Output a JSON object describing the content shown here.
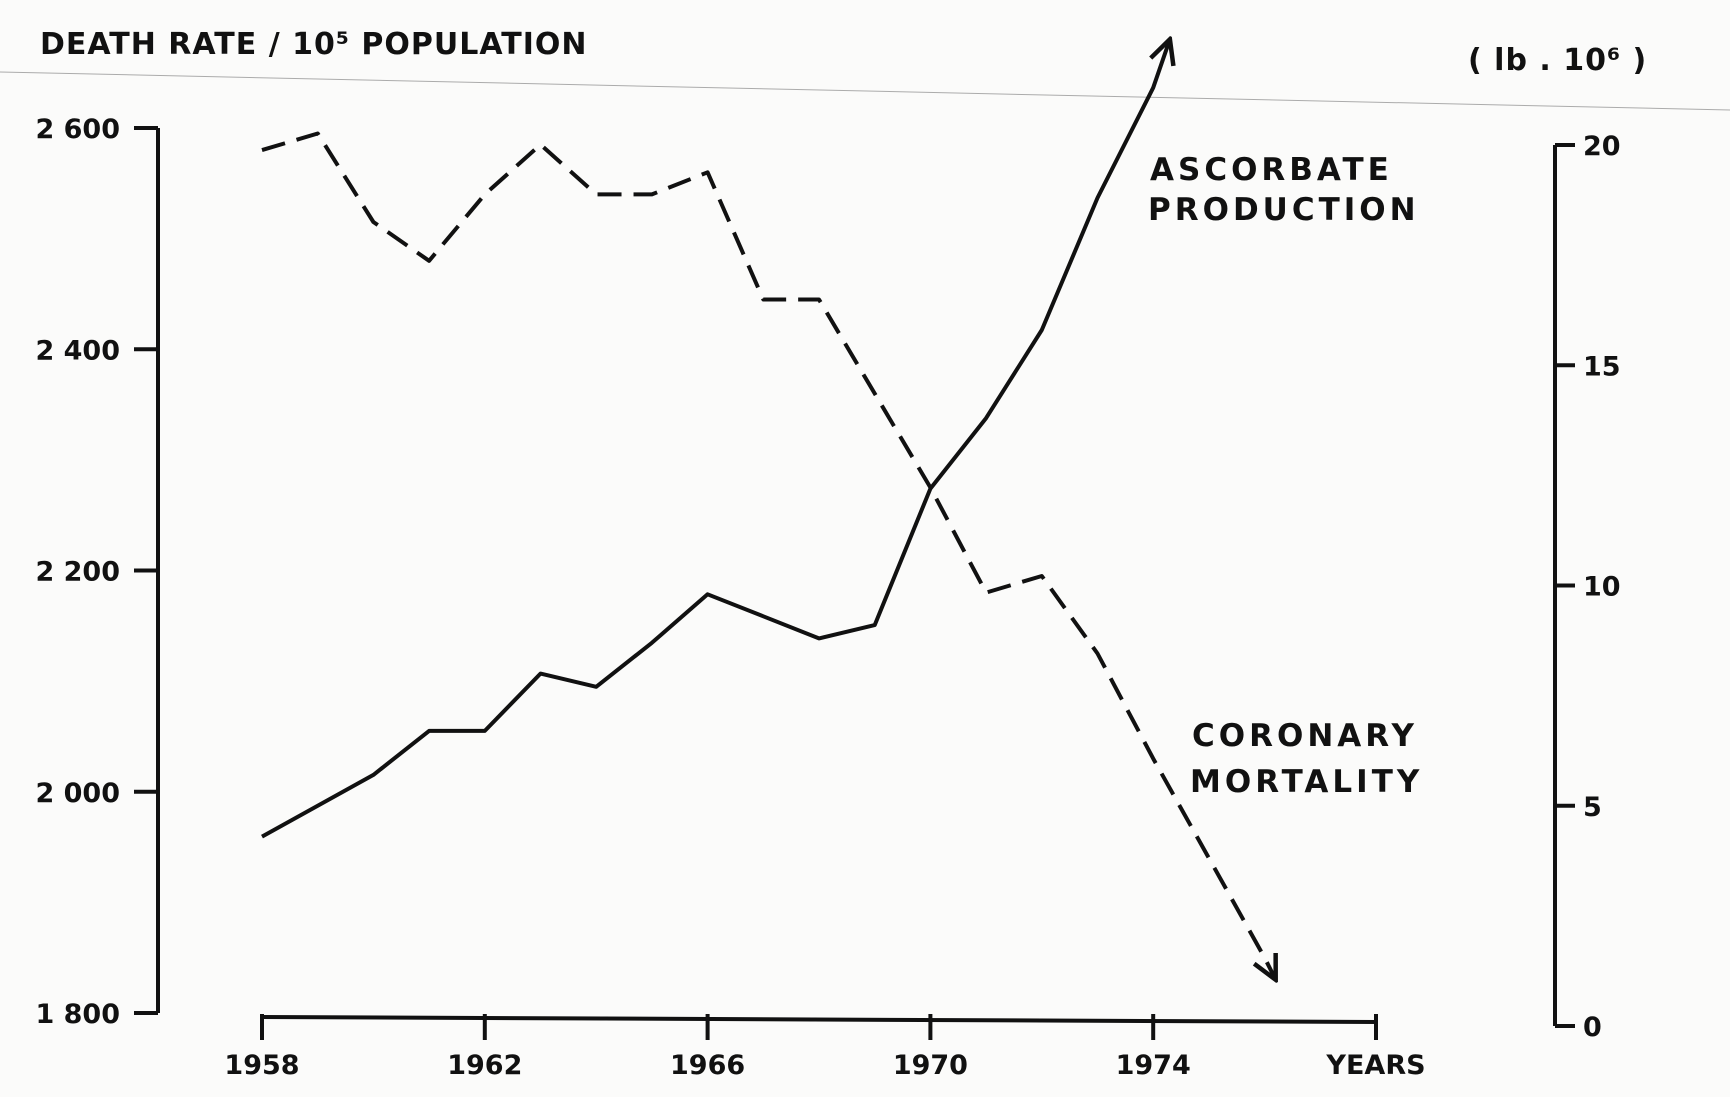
{
  "chart_data": {
    "type": "line",
    "title": "",
    "ylabel_left": "DEATH RATE / 10⁵ POPULATION",
    "ylabel_right": "( lb . 10⁶ )",
    "xlabel": "YEARS",
    "xlim": [
      1958,
      1978
    ],
    "x_ticks": [
      1958,
      1962,
      1966,
      1970,
      1974,
      1978
    ],
    "x_tick_labels": [
      "1958",
      "1962",
      "1966",
      "1970",
      "1974",
      "YEARS"
    ],
    "ylim_left": [
      1800,
      2600
    ],
    "y_left_ticks": [
      1800,
      2000,
      2200,
      2400,
      2600
    ],
    "y_left_tick_labels": [
      "1 800",
      "2 000",
      "2 200",
      "2 400",
      "2 600"
    ],
    "ylim_right": [
      0,
      20
    ],
    "y_right_ticks": [
      0,
      5,
      10,
      15,
      20
    ],
    "y_right_tick_labels": [
      "0",
      "5",
      "10",
      "15",
      "20"
    ],
    "grid": false,
    "legend": "none (series labelled directly on the chart)",
    "series": [
      {
        "name": "ASCORBATE PRODUCTION",
        "label_lines": [
          "ASCORBATE",
          "PRODUCTION"
        ],
        "axis": "right",
        "style": "solid",
        "arrow": true,
        "color": "#111111",
        "x": [
          1958,
          1959,
          1960,
          1961,
          1962,
          1963,
          1964,
          1965,
          1966,
          1967,
          1968,
          1969,
          1970,
          1971,
          1972,
          1973,
          1974,
          1974.3
        ],
        "values": [
          4.3,
          5.0,
          5.7,
          6.7,
          6.7,
          8.0,
          7.7,
          8.7,
          9.8,
          9.3,
          8.8,
          9.1,
          12.2,
          13.8,
          15.8,
          18.8,
          21.3,
          22.4
        ]
      },
      {
        "name": "CORONARY MORTALITY",
        "label_lines": [
          "CORONARY",
          "MORTALITY"
        ],
        "axis": "left",
        "style": "dashed",
        "arrow": true,
        "color": "#111111",
        "x": [
          1958,
          1959,
          1960,
          1961,
          1962,
          1963,
          1964,
          1965,
          1966,
          1967,
          1968,
          1969,
          1970,
          1971,
          1972,
          1973,
          1974,
          1975,
          1976,
          1976.2
        ],
        "values": [
          2580,
          2595,
          2515,
          2480,
          2540,
          2585,
          2540,
          2540,
          2560,
          2445,
          2445,
          2360,
          2275,
          2180,
          2195,
          2125,
          2030,
          1940,
          1850,
          1830
        ]
      }
    ]
  }
}
